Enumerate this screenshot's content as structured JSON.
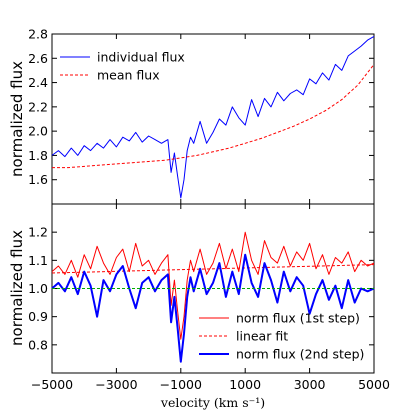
{
  "chart_data": [
    {
      "type": "line",
      "panel": "top",
      "xlabel": "",
      "ylabel": "normalized flux",
      "xlim": [
        -5000,
        5000
      ],
      "ylim": [
        1.4,
        2.8
      ],
      "xticks": [
        -5000,
        -3000,
        -1000,
        1000,
        3000,
        5000
      ],
      "yticks": [
        1.6,
        1.8,
        2.0,
        2.2,
        2.4,
        2.6,
        2.8
      ],
      "ytick_labels": [
        "1.6",
        "1.8",
        "2.0",
        "2.2",
        "2.4",
        "2.6",
        "2.8"
      ],
      "grid": false,
      "legend_position": "top-left",
      "series": [
        {
          "name": "individual flux",
          "style": "solid",
          "color": "#0000ff",
          "x": [
            -5000,
            -4800,
            -4600,
            -4400,
            -4200,
            -4000,
            -3800,
            -3600,
            -3400,
            -3200,
            -3000,
            -2800,
            -2600,
            -2400,
            -2200,
            -2000,
            -1800,
            -1600,
            -1400,
            -1300,
            -1200,
            -1100,
            -1000,
            -900,
            -800,
            -700,
            -600,
            -400,
            -200,
            0,
            200,
            400,
            600,
            800,
            1000,
            1200,
            1400,
            1600,
            1800,
            2000,
            2200,
            2400,
            2600,
            2800,
            3000,
            3200,
            3400,
            3600,
            3800,
            4000,
            4200,
            4400,
            4600,
            4800,
            5000
          ],
          "y": [
            1.8,
            1.84,
            1.79,
            1.86,
            1.8,
            1.88,
            1.84,
            1.9,
            1.86,
            1.93,
            1.87,
            1.95,
            1.92,
            1.99,
            1.91,
            1.96,
            1.93,
            1.9,
            1.93,
            1.66,
            1.82,
            1.63,
            1.45,
            1.6,
            1.84,
            1.95,
            1.9,
            2.08,
            1.9,
            1.99,
            2.1,
            2.05,
            2.2,
            2.11,
            2.05,
            2.26,
            2.12,
            2.27,
            2.2,
            2.32,
            2.25,
            2.31,
            2.34,
            2.3,
            2.43,
            2.39,
            2.48,
            2.42,
            2.55,
            2.5,
            2.62,
            2.66,
            2.7,
            2.75,
            2.78
          ]
        },
        {
          "name": "mean flux",
          "style": "dashed",
          "color": "#ff0000",
          "x": [
            -5000,
            -4500,
            -4000,
            -3500,
            -3000,
            -2500,
            -2000,
            -1500,
            -1000,
            -500,
            0,
            500,
            1000,
            1500,
            2000,
            2500,
            3000,
            3500,
            4000,
            4500,
            5000
          ],
          "y": [
            1.7,
            1.7,
            1.71,
            1.72,
            1.73,
            1.74,
            1.75,
            1.76,
            1.78,
            1.8,
            1.83,
            1.86,
            1.9,
            1.94,
            1.99,
            2.04,
            2.1,
            2.17,
            2.26,
            2.38,
            2.55
          ]
        }
      ]
    },
    {
      "type": "line",
      "panel": "bottom",
      "xlabel": "velocity  (km s⁻¹)",
      "ylabel": "normalized flux",
      "xlim": [
        -5000,
        5000
      ],
      "ylim": [
        0.7,
        1.3
      ],
      "xticks": [
        -5000,
        -3000,
        -1000,
        1000,
        3000,
        5000
      ],
      "xtick_labels": [
        "−5000",
        "−3000",
        "−1000",
        "1000",
        "3000",
        "5000"
      ],
      "yticks": [
        0.8,
        0.9,
        1.0,
        1.1,
        1.2
      ],
      "ytick_labels": [
        "0.8",
        "0.9",
        "1.0",
        "1.1",
        "1.2"
      ],
      "grid": false,
      "legend_position": "bottom-right",
      "series": [
        {
          "name": "norm flux (1st step)",
          "style": "solid",
          "color": "#ff0000",
          "x": [
            -5000,
            -4800,
            -4600,
            -4400,
            -4200,
            -4000,
            -3800,
            -3600,
            -3400,
            -3200,
            -3000,
            -2800,
            -2600,
            -2400,
            -2200,
            -2000,
            -1800,
            -1600,
            -1400,
            -1300,
            -1200,
            -1100,
            -1000,
            -900,
            -800,
            -700,
            -600,
            -400,
            -200,
            0,
            200,
            400,
            600,
            800,
            1000,
            1200,
            1400,
            1600,
            1800,
            2000,
            2200,
            2400,
            2600,
            2800,
            3000,
            3200,
            3400,
            3600,
            3800,
            4000,
            4200,
            4400,
            4600,
            4800,
            5000
          ],
          "y": [
            1.06,
            1.08,
            1.05,
            1.1,
            1.04,
            1.12,
            1.07,
            1.15,
            1.09,
            1.05,
            1.11,
            1.14,
            1.06,
            1.16,
            1.08,
            1.1,
            1.05,
            1.09,
            1.12,
            0.94,
            1.03,
            0.92,
            0.82,
            0.9,
            1.03,
            1.1,
            1.06,
            1.14,
            1.05,
            1.09,
            1.16,
            1.07,
            1.14,
            1.06,
            1.2,
            1.1,
            1.05,
            1.17,
            1.11,
            1.09,
            1.15,
            1.08,
            1.13,
            1.1,
            1.16,
            1.07,
            1.12,
            1.05,
            1.11,
            1.09,
            1.13,
            1.06,
            1.1,
            1.08,
            1.09
          ]
        },
        {
          "name": "linear fit",
          "style": "dashed",
          "color": "#ff0000",
          "x": [
            -5000,
            5000
          ],
          "y": [
            1.055,
            1.085
          ]
        },
        {
          "name": "norm flux (2nd step)",
          "style": "solid",
          "color": "#0000ff",
          "x": [
            -5000,
            -4800,
            -4600,
            -4400,
            -4200,
            -4000,
            -3800,
            -3600,
            -3400,
            -3200,
            -3000,
            -2800,
            -2600,
            -2400,
            -2200,
            -2000,
            -1800,
            -1600,
            -1400,
            -1300,
            -1200,
            -1100,
            -1000,
            -900,
            -800,
            -700,
            -600,
            -400,
            -200,
            0,
            200,
            400,
            600,
            800,
            1000,
            1200,
            1400,
            1600,
            1800,
            2000,
            2200,
            2400,
            2600,
            2800,
            3000,
            3200,
            3400,
            3600,
            3800,
            4000,
            4200,
            4400,
            4600,
            4800,
            5000
          ],
          "y": [
            1.0,
            1.02,
            0.99,
            1.04,
            0.98,
            1.06,
            1.01,
            0.9,
            1.03,
            0.99,
            1.05,
            1.08,
            1.0,
            0.93,
            1.02,
            1.04,
            0.99,
            1.03,
            1.05,
            0.88,
            0.97,
            0.86,
            0.74,
            0.84,
            0.97,
            1.04,
            0.99,
            1.07,
            0.98,
            1.02,
            1.09,
            0.97,
            1.06,
            0.98,
            1.12,
            1.02,
            0.97,
            1.09,
            1.03,
            0.95,
            1.06,
            0.99,
            1.04,
            1.01,
            0.91,
            0.98,
            1.03,
            0.96,
            1.01,
            0.93,
            1.03,
            0.95,
            1.0,
            0.99,
            1.0
          ]
        },
        {
          "name": "",
          "style": "dashed",
          "color": "#00aa00",
          "x": [
            -5000,
            5000
          ],
          "y": [
            1.0,
            1.0
          ]
        }
      ]
    }
  ]
}
